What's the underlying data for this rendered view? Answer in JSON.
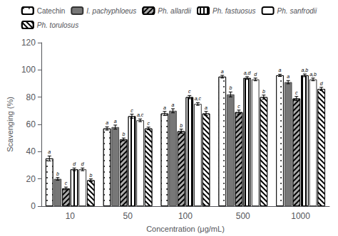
{
  "chart_data": {
    "type": "bar",
    "xlabel": "Concentration (μg/mL)",
    "ylabel": "Scavenging (%)",
    "categories": [
      "10",
      "50",
      "100",
      "500",
      "1000"
    ],
    "series": [
      {
        "name": "Catechin",
        "color": "white",
        "values": [
          35,
          57,
          68,
          95,
          96
        ],
        "errors": [
          1.8,
          1.2,
          1.5,
          1.0,
          0.8
        ],
        "annotations": [
          "a",
          "a",
          "a",
          "a",
          "a"
        ]
      },
      {
        "name": "I. pachyphloeus",
        "color": "#777777",
        "values": [
          20,
          58,
          70,
          82,
          91
        ],
        "errors": [
          1.0,
          1.5,
          1.5,
          1.8,
          1.2
        ],
        "annotations": [
          "b",
          "a",
          "a",
          "b",
          "a"
        ]
      },
      {
        "name": "Ph. allardii",
        "color": "#aaaaaa",
        "values": [
          13,
          49,
          55,
          69,
          79
        ],
        "errors": [
          1.0,
          1.0,
          1.5,
          1.5,
          1.5
        ],
        "annotations": [
          "c",
          "b",
          "b",
          "c",
          "c"
        ]
      },
      {
        "name": "Ph. fastuosus",
        "color": "white",
        "values": [
          27,
          66,
          80,
          94,
          96
        ],
        "errors": [
          1.0,
          1.5,
          1.2,
          1.0,
          1.0
        ],
        "annotations": [
          "d",
          "c",
          "c",
          "a,d",
          "a,b"
        ]
      },
      {
        "name": "Ph. sanfrodii",
        "color": "white",
        "values": [
          27,
          63,
          75,
          93,
          93
        ],
        "errors": [
          1.0,
          1.0,
          1.0,
          1.0,
          1.0
        ],
        "annotations": [
          "d",
          "a,c",
          "a,c",
          "d",
          "a,b"
        ]
      },
      {
        "name": "Ph. torulosus",
        "color": "white",
        "values": [
          19,
          57,
          68,
          80,
          86
        ],
        "errors": [
          1.0,
          1.0,
          1.5,
          1.5,
          1.2
        ],
        "annotations": [
          "b",
          "c",
          "a",
          "b",
          "d"
        ]
      }
    ],
    "ylim": [
      0,
      120
    ],
    "yticks": [
      0,
      20,
      40,
      60,
      80,
      100,
      120
    ],
    "grid": false,
    "legend": "top"
  }
}
